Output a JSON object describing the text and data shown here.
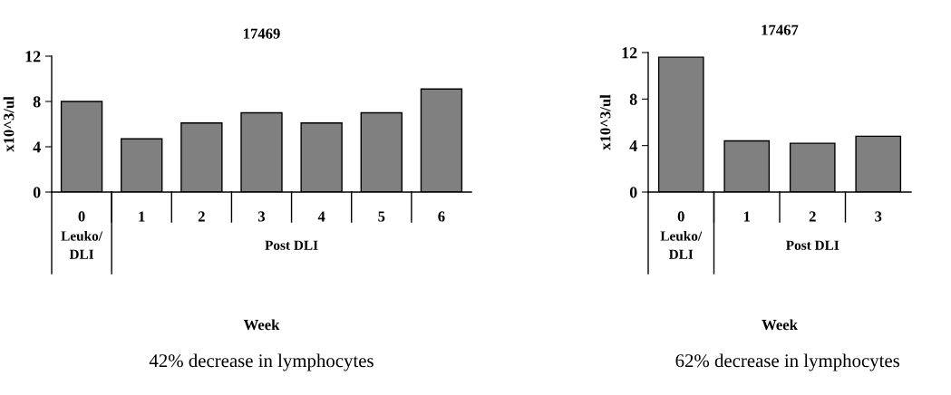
{
  "chart_data": [
    {
      "type": "bar",
      "title": "17469",
      "ylabel": "x10^3/ul",
      "xlabel": "Week",
      "categories": [
        "0",
        "1",
        "2",
        "3",
        "4",
        "5",
        "6"
      ],
      "values": [
        8.0,
        4.7,
        6.1,
        7.0,
        6.1,
        7.0,
        9.1
      ],
      "color": "#808080",
      "ylim": [
        0,
        12
      ],
      "yticks": [
        0,
        4,
        8,
        12
      ],
      "annotations": [
        "Leuko/\nDLI",
        "Post DLI",
        "42% decrease in lymphocytes"
      ]
    },
    {
      "type": "bar",
      "title": "17467",
      "ylabel": "x10^3/ul",
      "xlabel": "Week",
      "categories": [
        "0",
        "1",
        "2",
        "3"
      ],
      "values": [
        11.6,
        4.4,
        4.2,
        4.8
      ],
      "color": "#808080",
      "ylim": [
        0,
        12
      ],
      "yticks": [
        0,
        4,
        8,
        12
      ],
      "annotations": [
        "Leuko/\nDLI",
        "Post DLI",
        "62% decrease in lymphocytes"
      ]
    }
  ]
}
